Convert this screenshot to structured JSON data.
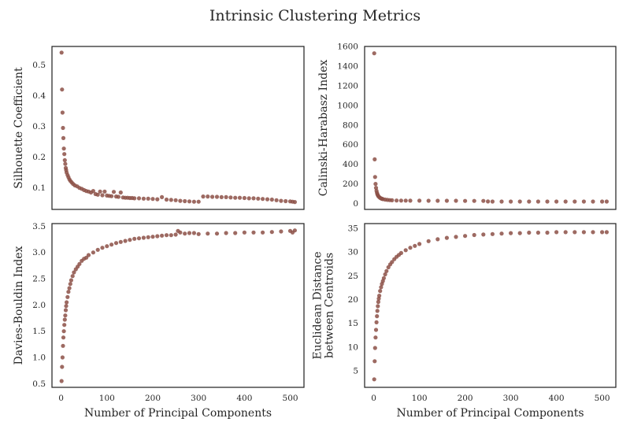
{
  "figure": {
    "title": "Intrinsic Clustering Metrics",
    "point_color": "#8c5047",
    "frame_color": "#262626"
  },
  "chart_data": [
    {
      "type": "scatter",
      "id": "silhouette",
      "ylabel": [
        "Silhouette Coefficient"
      ],
      "xlabel": "",
      "xlim": [
        -20,
        530
      ],
      "ylim": [
        0.03,
        0.56
      ],
      "xticks": [],
      "yticks": [
        0.1,
        0.2,
        0.3,
        0.4,
        0.5
      ],
      "ytick_labels": [
        "0.1",
        "0.2",
        "0.3",
        "0.4",
        "0.5"
      ],
      "grid": false,
      "x": [
        1,
        2,
        3,
        4,
        5,
        6,
        7,
        8,
        9,
        10,
        11,
        12,
        14,
        16,
        18,
        20,
        23,
        26,
        30,
        35,
        40,
        45,
        50,
        55,
        60,
        65,
        70,
        75,
        80,
        85,
        90,
        95,
        100,
        105,
        110,
        115,
        120,
        125,
        130,
        135,
        140,
        145,
        150,
        155,
        160,
        170,
        180,
        190,
        200,
        210,
        220,
        230,
        240,
        250,
        260,
        270,
        280,
        290,
        300,
        310,
        320,
        330,
        340,
        350,
        360,
        370,
        380,
        390,
        400,
        410,
        420,
        430,
        440,
        450,
        460,
        470,
        480,
        490,
        500,
        505,
        510
      ],
      "y": [
        0.54,
        0.42,
        0.345,
        0.295,
        0.262,
        0.228,
        0.21,
        0.19,
        0.178,
        0.165,
        0.158,
        0.15,
        0.142,
        0.135,
        0.128,
        0.123,
        0.118,
        0.113,
        0.108,
        0.105,
        0.1,
        0.097,
        0.093,
        0.09,
        0.088,
        0.085,
        0.09,
        0.08,
        0.078,
        0.088,
        0.076,
        0.088,
        0.075,
        0.074,
        0.073,
        0.087,
        0.072,
        0.071,
        0.085,
        0.069,
        0.068,
        0.068,
        0.067,
        0.067,
        0.066,
        0.066,
        0.065,
        0.065,
        0.064,
        0.063,
        0.07,
        0.062,
        0.061,
        0.06,
        0.058,
        0.057,
        0.056,
        0.055,
        0.055,
        0.072,
        0.072,
        0.071,
        0.071,
        0.07,
        0.07,
        0.069,
        0.068,
        0.068,
        0.067,
        0.066,
        0.066,
        0.065,
        0.064,
        0.063,
        0.062,
        0.06,
        0.058,
        0.057,
        0.056,
        0.055,
        0.054
      ]
    },
    {
      "type": "scatter",
      "id": "calinski",
      "ylabel": [
        "Calinski-Harabasz Index"
      ],
      "xlabel": "",
      "xlim": [
        -20,
        530
      ],
      "ylim": [
        -60,
        1600
      ],
      "xticks": [],
      "yticks": [
        0,
        200,
        400,
        600,
        800,
        1000,
        1200,
        1400,
        1600
      ],
      "ytick_labels": [
        "0",
        "200",
        "400",
        "600",
        "800",
        "1000",
        "1200",
        "1400",
        "1600"
      ],
      "grid": false,
      "x": [
        1,
        2,
        3,
        4,
        5,
        6,
        7,
        8,
        9,
        10,
        12,
        14,
        16,
        18,
        20,
        25,
        30,
        35,
        40,
        50,
        60,
        70,
        80,
        100,
        120,
        140,
        160,
        180,
        200,
        220,
        240,
        250,
        260,
        280,
        300,
        320,
        340,
        360,
        380,
        400,
        420,
        440,
        460,
        480,
        500,
        510
      ],
      "y": [
        1530,
        450,
        270,
        200,
        160,
        130,
        110,
        95,
        85,
        75,
        65,
        58,
        52,
        48,
        45,
        40,
        37,
        35,
        33,
        31,
        30,
        30,
        29,
        29,
        28,
        28,
        28,
        28,
        27,
        27,
        27,
        21,
        20,
        20,
        20,
        20,
        20,
        20,
        20,
        20,
        20,
        20,
        20,
        20,
        20,
        20
      ]
    },
    {
      "type": "scatter",
      "id": "davies",
      "ylabel": [
        "Davies-Bouldin Index"
      ],
      "xlabel": "Number of Principal Components",
      "xlim": [
        -20,
        530
      ],
      "ylim": [
        0.43,
        3.55
      ],
      "xticks": [
        0,
        100,
        200,
        300,
        400,
        500
      ],
      "xtick_labels": [
        "0",
        "100",
        "200",
        "300",
        "400",
        "500"
      ],
      "yticks": [
        0.5,
        1.0,
        1.5,
        2.0,
        2.5,
        3.0,
        3.5
      ],
      "ytick_labels": [
        "0.5",
        "1.0",
        "1.5",
        "2.0",
        "2.5",
        "3.0",
        "3.5"
      ],
      "grid": false,
      "x": [
        1,
        2,
        3,
        4,
        5,
        6,
        7,
        8,
        9,
        10,
        11,
        12,
        14,
        16,
        18,
        20,
        22,
        25,
        28,
        32,
        36,
        40,
        45,
        50,
        55,
        60,
        70,
        80,
        90,
        100,
        110,
        120,
        130,
        140,
        150,
        160,
        170,
        180,
        190,
        200,
        210,
        220,
        230,
        240,
        250,
        255,
        260,
        270,
        280,
        290,
        300,
        320,
        340,
        360,
        380,
        400,
        420,
        440,
        460,
        480,
        500,
        505,
        510
      ],
      "y": [
        0.55,
        0.82,
        1.0,
        1.22,
        1.38,
        1.5,
        1.62,
        1.72,
        1.8,
        1.9,
        1.98,
        2.05,
        2.15,
        2.25,
        2.32,
        2.4,
        2.47,
        2.55,
        2.62,
        2.68,
        2.73,
        2.78,
        2.84,
        2.88,
        2.9,
        2.95,
        3.0,
        3.05,
        3.09,
        3.12,
        3.15,
        3.18,
        3.2,
        3.22,
        3.24,
        3.26,
        3.27,
        3.28,
        3.29,
        3.3,
        3.31,
        3.32,
        3.33,
        3.33,
        3.34,
        3.41,
        3.38,
        3.36,
        3.37,
        3.37,
        3.35,
        3.36,
        3.36,
        3.37,
        3.37,
        3.38,
        3.38,
        3.38,
        3.39,
        3.4,
        3.41,
        3.38,
        3.42
      ]
    },
    {
      "type": "scatter",
      "id": "euclidean",
      "ylabel": [
        "Euclidean Distance",
        "between Centroids"
      ],
      "xlabel": "Number of Principal Components",
      "xlim": [
        -20,
        530
      ],
      "ylim": [
        1.5,
        36
      ],
      "xticks": [
        0,
        100,
        200,
        300,
        400,
        500
      ],
      "xtick_labels": [
        "0",
        "100",
        "200",
        "300",
        "400",
        "500"
      ],
      "yticks": [
        5,
        10,
        15,
        20,
        25,
        30,
        35
      ],
      "ytick_labels": [
        "5",
        "10",
        "15",
        "20",
        "25",
        "30",
        "35"
      ],
      "grid": false,
      "x": [
        1,
        2,
        3,
        4,
        5,
        6,
        7,
        8,
        9,
        10,
        11,
        12,
        14,
        16,
        18,
        20,
        22,
        25,
        28,
        32,
        36,
        40,
        45,
        50,
        55,
        60,
        70,
        80,
        90,
        100,
        120,
        140,
        160,
        180,
        200,
        220,
        240,
        260,
        280,
        300,
        320,
        340,
        360,
        380,
        400,
        420,
        440,
        460,
        480,
        500,
        510
      ],
      "y": [
        3.2,
        7,
        9.8,
        12,
        13.6,
        15.2,
        16.5,
        17.6,
        18.6,
        19.5,
        20.2,
        20.8,
        21.8,
        22.6,
        23.3,
        23.9,
        24.5,
        25.3,
        26,
        26.8,
        27.4,
        27.9,
        28.5,
        29,
        29.4,
        29.8,
        30.4,
        30.9,
        31.3,
        31.7,
        32.3,
        32.7,
        33,
        33.2,
        33.4,
        33.6,
        33.7,
        33.8,
        33.9,
        34,
        34,
        34.1,
        34.1,
        34.1,
        34.2,
        34.2,
        34.2,
        34.2,
        34.2,
        34.2,
        34.2
      ]
    }
  ]
}
